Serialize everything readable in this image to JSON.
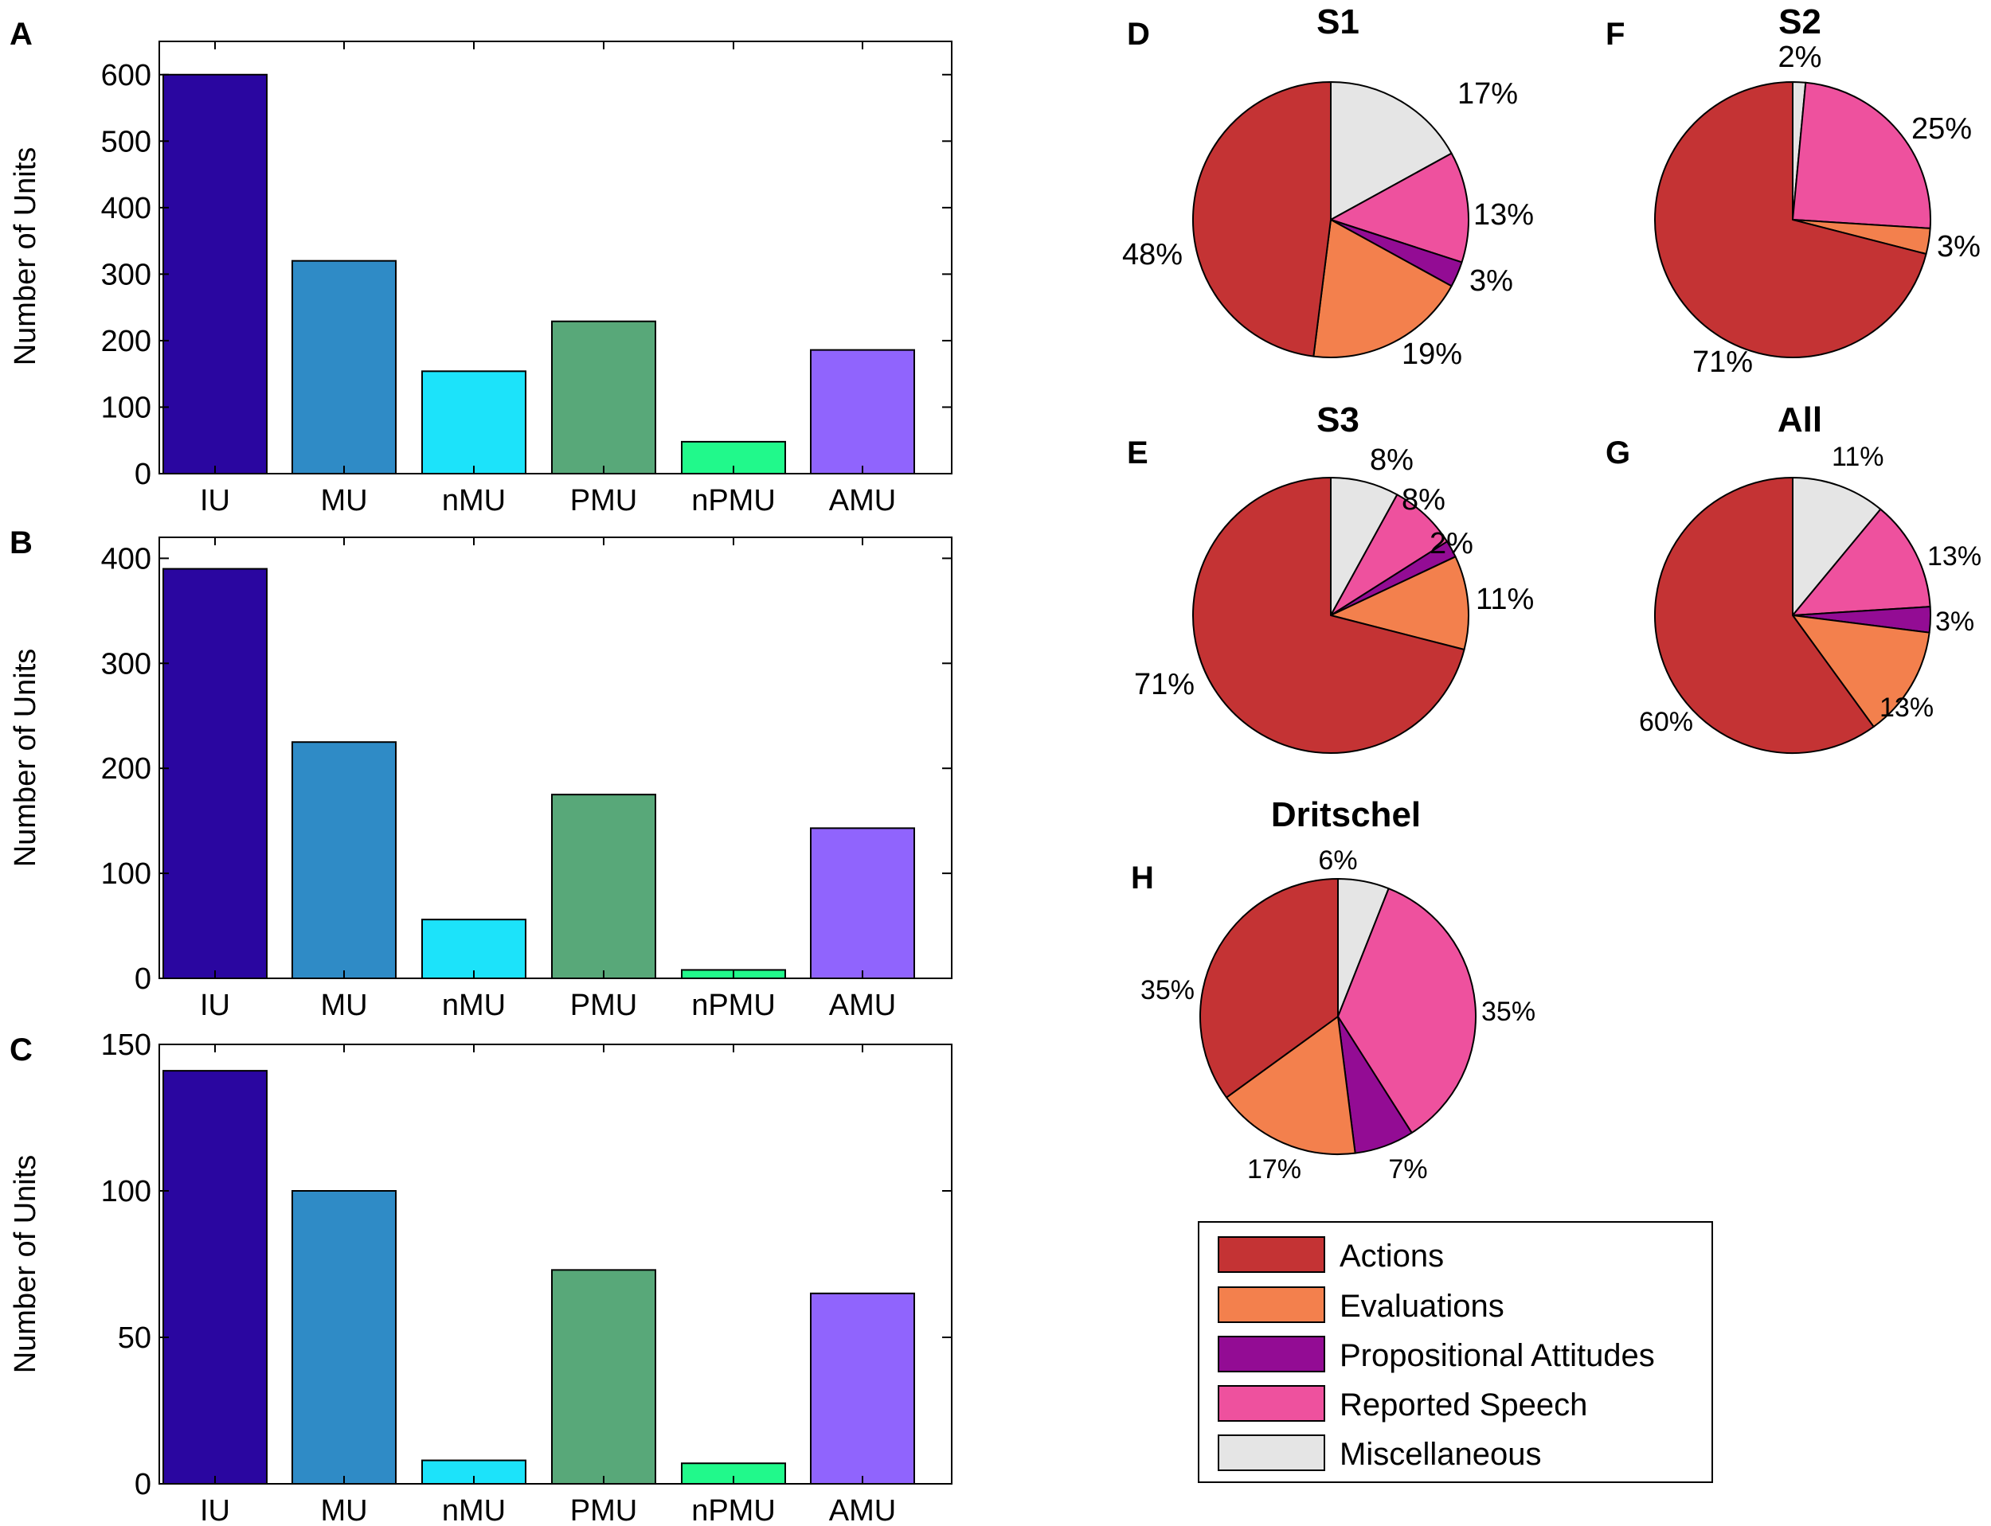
{
  "colors": {
    "IU": "#2a06a0",
    "MU": "#2f8bc6",
    "nMU": "#1ce3fa",
    "PMU": "#58a879",
    "nPMU": "#21f98b",
    "AMU": "#9064fd",
    "Actions": "#c43334",
    "Evaluations": "#f3804d",
    "Propositional Attitudes": "#930c94",
    "Reported Speech": "#ee519e",
    "Miscellaneous": "#e5e5e5"
  },
  "chart_data": [
    {
      "id": "A",
      "type": "bar",
      "letter": "A",
      "ylabel": "Number of Units",
      "categories": [
        "IU",
        "MU",
        "nMU",
        "PMU",
        "nPMU",
        "AMU"
      ],
      "values": [
        600,
        320,
        154,
        229,
        48,
        186
      ],
      "ylim": [
        0,
        650
      ],
      "yticks": [
        "0",
        "100",
        "200",
        "300",
        "400",
        "500",
        "600"
      ]
    },
    {
      "id": "B",
      "type": "bar",
      "letter": "B",
      "ylabel": "Number of Units",
      "categories": [
        "IU",
        "MU",
        "nMU",
        "PMU",
        "nPMU",
        "AMU"
      ],
      "values": [
        390,
        225,
        56,
        175,
        8,
        143
      ],
      "ylim": [
        0,
        420
      ],
      "yticks": [
        "0",
        "100",
        "200",
        "300",
        "400"
      ]
    },
    {
      "id": "C",
      "type": "bar",
      "letter": "C",
      "ylabel": "Number of Units",
      "categories": [
        "IU",
        "MU",
        "nMU",
        "PMU",
        "nPMU",
        "AMU"
      ],
      "values": [
        141,
        100,
        8,
        73,
        7,
        65
      ],
      "ylim": [
        0,
        150
      ],
      "yticks": [
        "0",
        "50",
        "100",
        "150"
      ]
    },
    {
      "id": "D",
      "type": "pie",
      "letter": "D",
      "title": "S1",
      "slices": [
        {
          "category": "Miscellaneous",
          "value": 17,
          "label": "17%"
        },
        {
          "category": "Reported Speech",
          "value": 13,
          "label": "13%"
        },
        {
          "category": "Propositional Attitudes",
          "value": 3,
          "label": "3%"
        },
        {
          "category": "Evaluations",
          "value": 19,
          "label": "19%"
        },
        {
          "category": "Actions",
          "value": 48,
          "label": "48%"
        }
      ]
    },
    {
      "id": "F",
      "type": "pie",
      "letter": "F",
      "title": "S2",
      "slices": [
        {
          "category": "Miscellaneous",
          "value": 1.5,
          "label": "2%"
        },
        {
          "category": "Reported Speech",
          "value": 24.5,
          "label": "25%"
        },
        {
          "category": "Evaluations",
          "value": 3,
          "label": "3%"
        },
        {
          "category": "Actions",
          "value": 71,
          "label": "71%"
        }
      ]
    },
    {
      "id": "E",
      "type": "pie",
      "letter": "E",
      "title": "S3",
      "slices": [
        {
          "category": "Miscellaneous",
          "value": 8,
          "label": "8%"
        },
        {
          "category": "Reported Speech",
          "value": 8,
          "label": "8%"
        },
        {
          "category": "Propositional Attitudes",
          "value": 2,
          "label": "2%"
        },
        {
          "category": "Evaluations",
          "value": 11,
          "label": "11%"
        },
        {
          "category": "Actions",
          "value": 71,
          "label": "71%"
        }
      ]
    },
    {
      "id": "G",
      "type": "pie",
      "letter": "G",
      "title": "All",
      "slices": [
        {
          "category": "Miscellaneous",
          "value": 11,
          "label": "11%"
        },
        {
          "category": "Reported Speech",
          "value": 13,
          "label": "13%"
        },
        {
          "category": "Propositional Attitudes",
          "value": 3,
          "label": "3%"
        },
        {
          "category": "Evaluations",
          "value": 13,
          "label": "13%"
        },
        {
          "category": "Actions",
          "value": 60,
          "label": "60%"
        }
      ]
    },
    {
      "id": "H",
      "type": "pie",
      "letter": "H",
      "title": "Dritschel",
      "slices": [
        {
          "category": "Miscellaneous",
          "value": 6,
          "label": "6%"
        },
        {
          "category": "Reported Speech",
          "value": 35,
          "label": "35%"
        },
        {
          "category": "Propositional Attitudes",
          "value": 7,
          "label": "7%"
        },
        {
          "category": "Evaluations",
          "value": 17,
          "label": "17%"
        },
        {
          "category": "Actions",
          "value": 35,
          "label": "35%"
        }
      ]
    }
  ],
  "legend": {
    "items": [
      "Actions",
      "Evaluations",
      "Propositional Attitudes",
      "Reported Speech",
      "Miscellaneous"
    ]
  }
}
